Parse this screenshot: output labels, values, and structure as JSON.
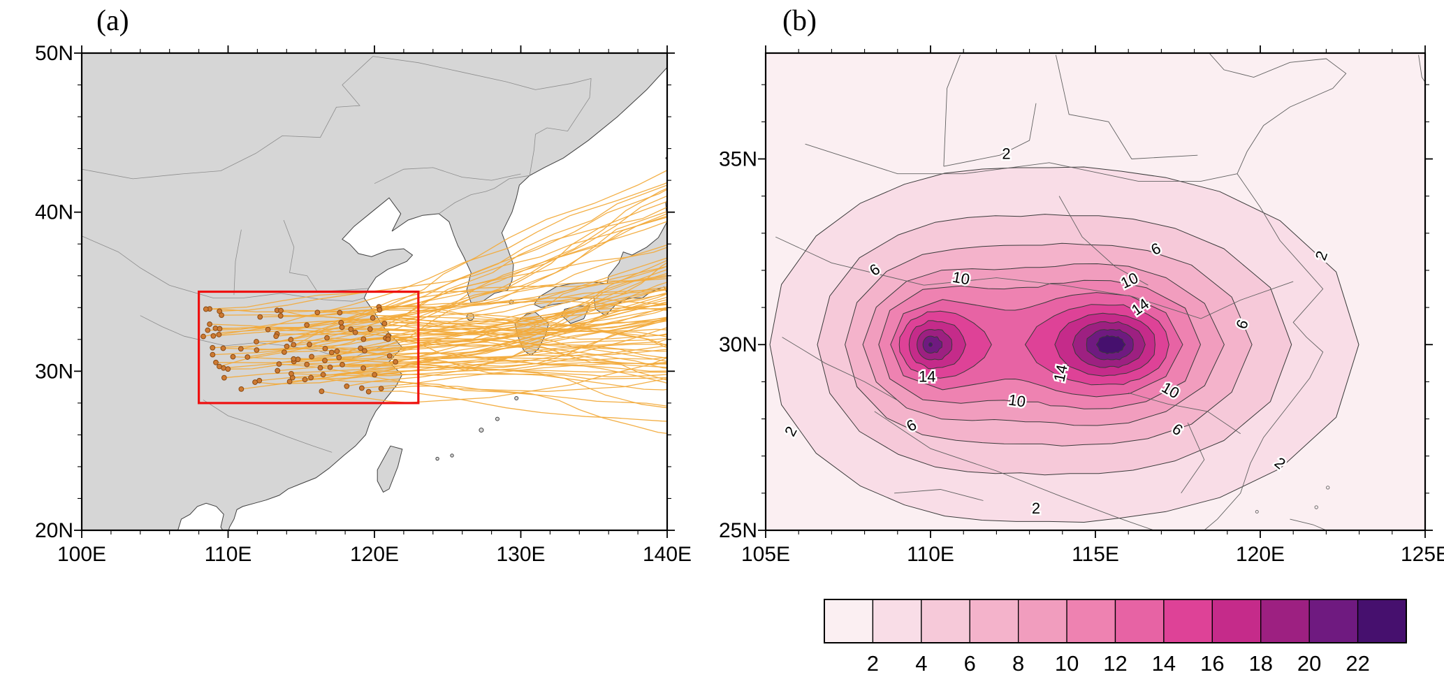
{
  "figure": {
    "panel_a_label": "(a)",
    "panel_b_label": "(b)"
  },
  "colorbar": {
    "labels": [
      "2",
      "4",
      "6",
      "8",
      "10",
      "12",
      "14",
      "16",
      "18",
      "20",
      "22"
    ],
    "colors": [
      "#fbeff2",
      "#f9dde7",
      "#f6c9d9",
      "#f4b3cb",
      "#f19dbe",
      "#ee82b1",
      "#e763a4",
      "#de4297",
      "#c52b8a",
      "#9d2081",
      "#6f1a80",
      "#46106e"
    ]
  },
  "chart_data": [
    {
      "panel": "a",
      "type": "line",
      "subtype": "cyclone-track-map",
      "x_axis": {
        "tick_labels": [
          "100E",
          "110E",
          "120E",
          "130E",
          "140E"
        ],
        "tick_values": [
          100,
          110,
          120,
          130,
          140
        ],
        "minor_step": 2,
        "range": [
          100,
          140
        ]
      },
      "y_axis": {
        "tick_labels": [
          "20N",
          "30N",
          "40N",
          "50N"
        ],
        "tick_values": [
          20,
          30,
          40,
          50
        ],
        "minor_step": 2,
        "range": [
          20,
          50
        ]
      },
      "land_color": "#d6d6d6",
      "coast_color": "#3f3f3f",
      "province_color": "#8c8c8c",
      "tracks": {
        "color": "#f2ab3c",
        "count": 88,
        "seed": 11,
        "start_lon_range": [
          108.3,
          121.5
        ],
        "start_lat_range": [
          28.7,
          34.1
        ],
        "motion": "east-northeast"
      },
      "genesis_dots": {
        "fill": "#cd7a33",
        "stroke": "#8a4a12",
        "radius": 3.4
      },
      "key_region_box": {
        "lon_range": [
          108,
          123
        ],
        "lat_range": [
          28,
          35
        ],
        "color": "#ee1111"
      }
    },
    {
      "panel": "b",
      "type": "heatmap",
      "subtype": "filled-contour-map",
      "x_axis": {
        "tick_labels": [
          "105E",
          "110E",
          "115E",
          "120E",
          "125E"
        ],
        "tick_values": [
          105,
          110,
          115,
          120,
          125
        ],
        "minor_step": 1,
        "range": [
          105,
          125
        ]
      },
      "y_axis": {
        "tick_labels": [
          "25N",
          "30N",
          "35N"
        ],
        "tick_values": [
          25,
          30,
          35
        ],
        "minor_step": 1,
        "range": [
          25,
          37.85
        ]
      },
      "contour_levels": [
        2,
        4,
        6,
        8,
        10,
        12,
        14,
        16,
        18,
        20,
        22
      ],
      "contour_line_color": "#3a3a3a",
      "map_outline_color": "#606060",
      "density_maxima": [
        {
          "lon": 110.0,
          "lat": 30.0,
          "amp": 19.0,
          "sx": 1.8,
          "sy": 1.5
        },
        {
          "lon": 115.5,
          "lat": 30.0,
          "amp": 24.5,
          "sx": 3.0,
          "sy": 1.8
        }
      ],
      "contour_labels": [
        {
          "text": "2",
          "lon": 112.3,
          "lat": 35.0,
          "rot": 0
        },
        {
          "text": "2",
          "lon": 105.9,
          "lat": 27.6,
          "rot": -62
        },
        {
          "text": "2",
          "lon": 113.2,
          "lat": 25.45,
          "rot": 0
        },
        {
          "text": "2",
          "lon": 122.0,
          "lat": 32.35,
          "rot": -70
        },
        {
          "text": "2",
          "lon": 120.5,
          "lat": 26.7,
          "rot": 40
        },
        {
          "text": "6",
          "lon": 108.4,
          "lat": 31.9,
          "rot": -35
        },
        {
          "text": "6",
          "lon": 116.9,
          "lat": 32.45,
          "rot": -25
        },
        {
          "text": "6",
          "lon": 119.6,
          "lat": 30.5,
          "rot": -70
        },
        {
          "text": "6",
          "lon": 109.5,
          "lat": 27.7,
          "rot": -30
        },
        {
          "text": "6",
          "lon": 117.4,
          "lat": 27.6,
          "rot": 35
        },
        {
          "text": "10",
          "lon": 110.9,
          "lat": 31.65,
          "rot": 10
        },
        {
          "text": "10",
          "lon": 116.1,
          "lat": 31.6,
          "rot": -25
        },
        {
          "text": "10",
          "lon": 117.2,
          "lat": 28.65,
          "rot": 30
        },
        {
          "text": "10",
          "lon": 112.6,
          "lat": 28.35,
          "rot": 8
        },
        {
          "text": "14",
          "lon": 109.9,
          "lat": 29.0,
          "rot": 0
        },
        {
          "text": "14",
          "lon": 114.1,
          "lat": 29.2,
          "rot": -78
        },
        {
          "text": "14",
          "lon": 116.45,
          "lat": 30.9,
          "rot": -35
        }
      ]
    }
  ]
}
